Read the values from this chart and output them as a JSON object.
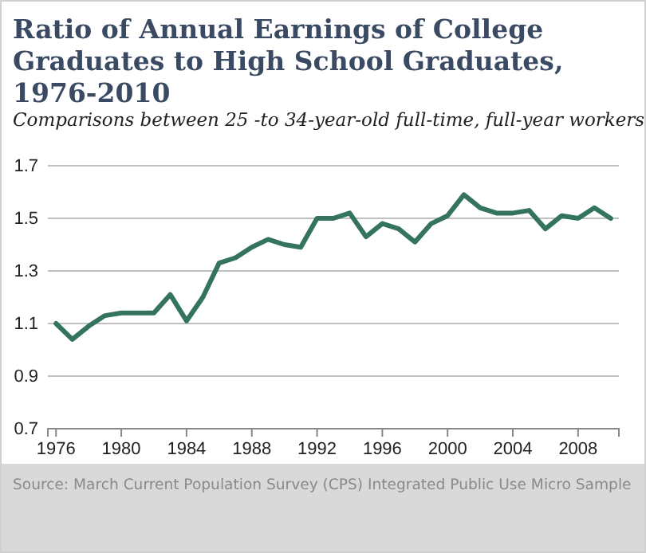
{
  "chart_data": {
    "type": "line",
    "title": "Ratio of Annual Earnings of College Graduates to High School Graduates, 1976-2010",
    "subtitle": "Comparisons between 25 -to 34-year-old full-time, full-year workers",
    "x": [
      1976,
      1977,
      1978,
      1979,
      1980,
      1981,
      1982,
      1983,
      1984,
      1985,
      1986,
      1987,
      1988,
      1989,
      1990,
      1991,
      1992,
      1993,
      1994,
      1995,
      1996,
      1997,
      1998,
      1999,
      2000,
      2001,
      2002,
      2003,
      2004,
      2005,
      2006,
      2007,
      2008,
      2009,
      2010
    ],
    "series": [
      {
        "color": "#33735f",
        "values": [
          1.1,
          1.04,
          1.09,
          1.13,
          1.14,
          1.14,
          1.14,
          1.21,
          1.11,
          1.2,
          1.33,
          1.35,
          1.39,
          1.42,
          1.4,
          1.39,
          1.5,
          1.5,
          1.52,
          1.43,
          1.48,
          1.46,
          1.41,
          1.48,
          1.51,
          1.59,
          1.54,
          1.52,
          1.52,
          1.53,
          1.46,
          1.51,
          1.5,
          1.54,
          1.5
        ]
      }
    ],
    "xlim": [
      1975.5,
      2010.5
    ],
    "xticks": [
      1976,
      1980,
      1984,
      1988,
      1992,
      1996,
      2000,
      2004,
      2008
    ],
    "ylim": [
      0.7,
      1.7
    ],
    "yticks": [
      0.7,
      0.9,
      1.1,
      1.3,
      1.5,
      1.7
    ],
    "grid": "y",
    "marker": "none",
    "line_style": "solid",
    "annotations": [
      "Source: March Current Population Survey (CPS) Integrated Public Use Micro Sample"
    ]
  }
}
